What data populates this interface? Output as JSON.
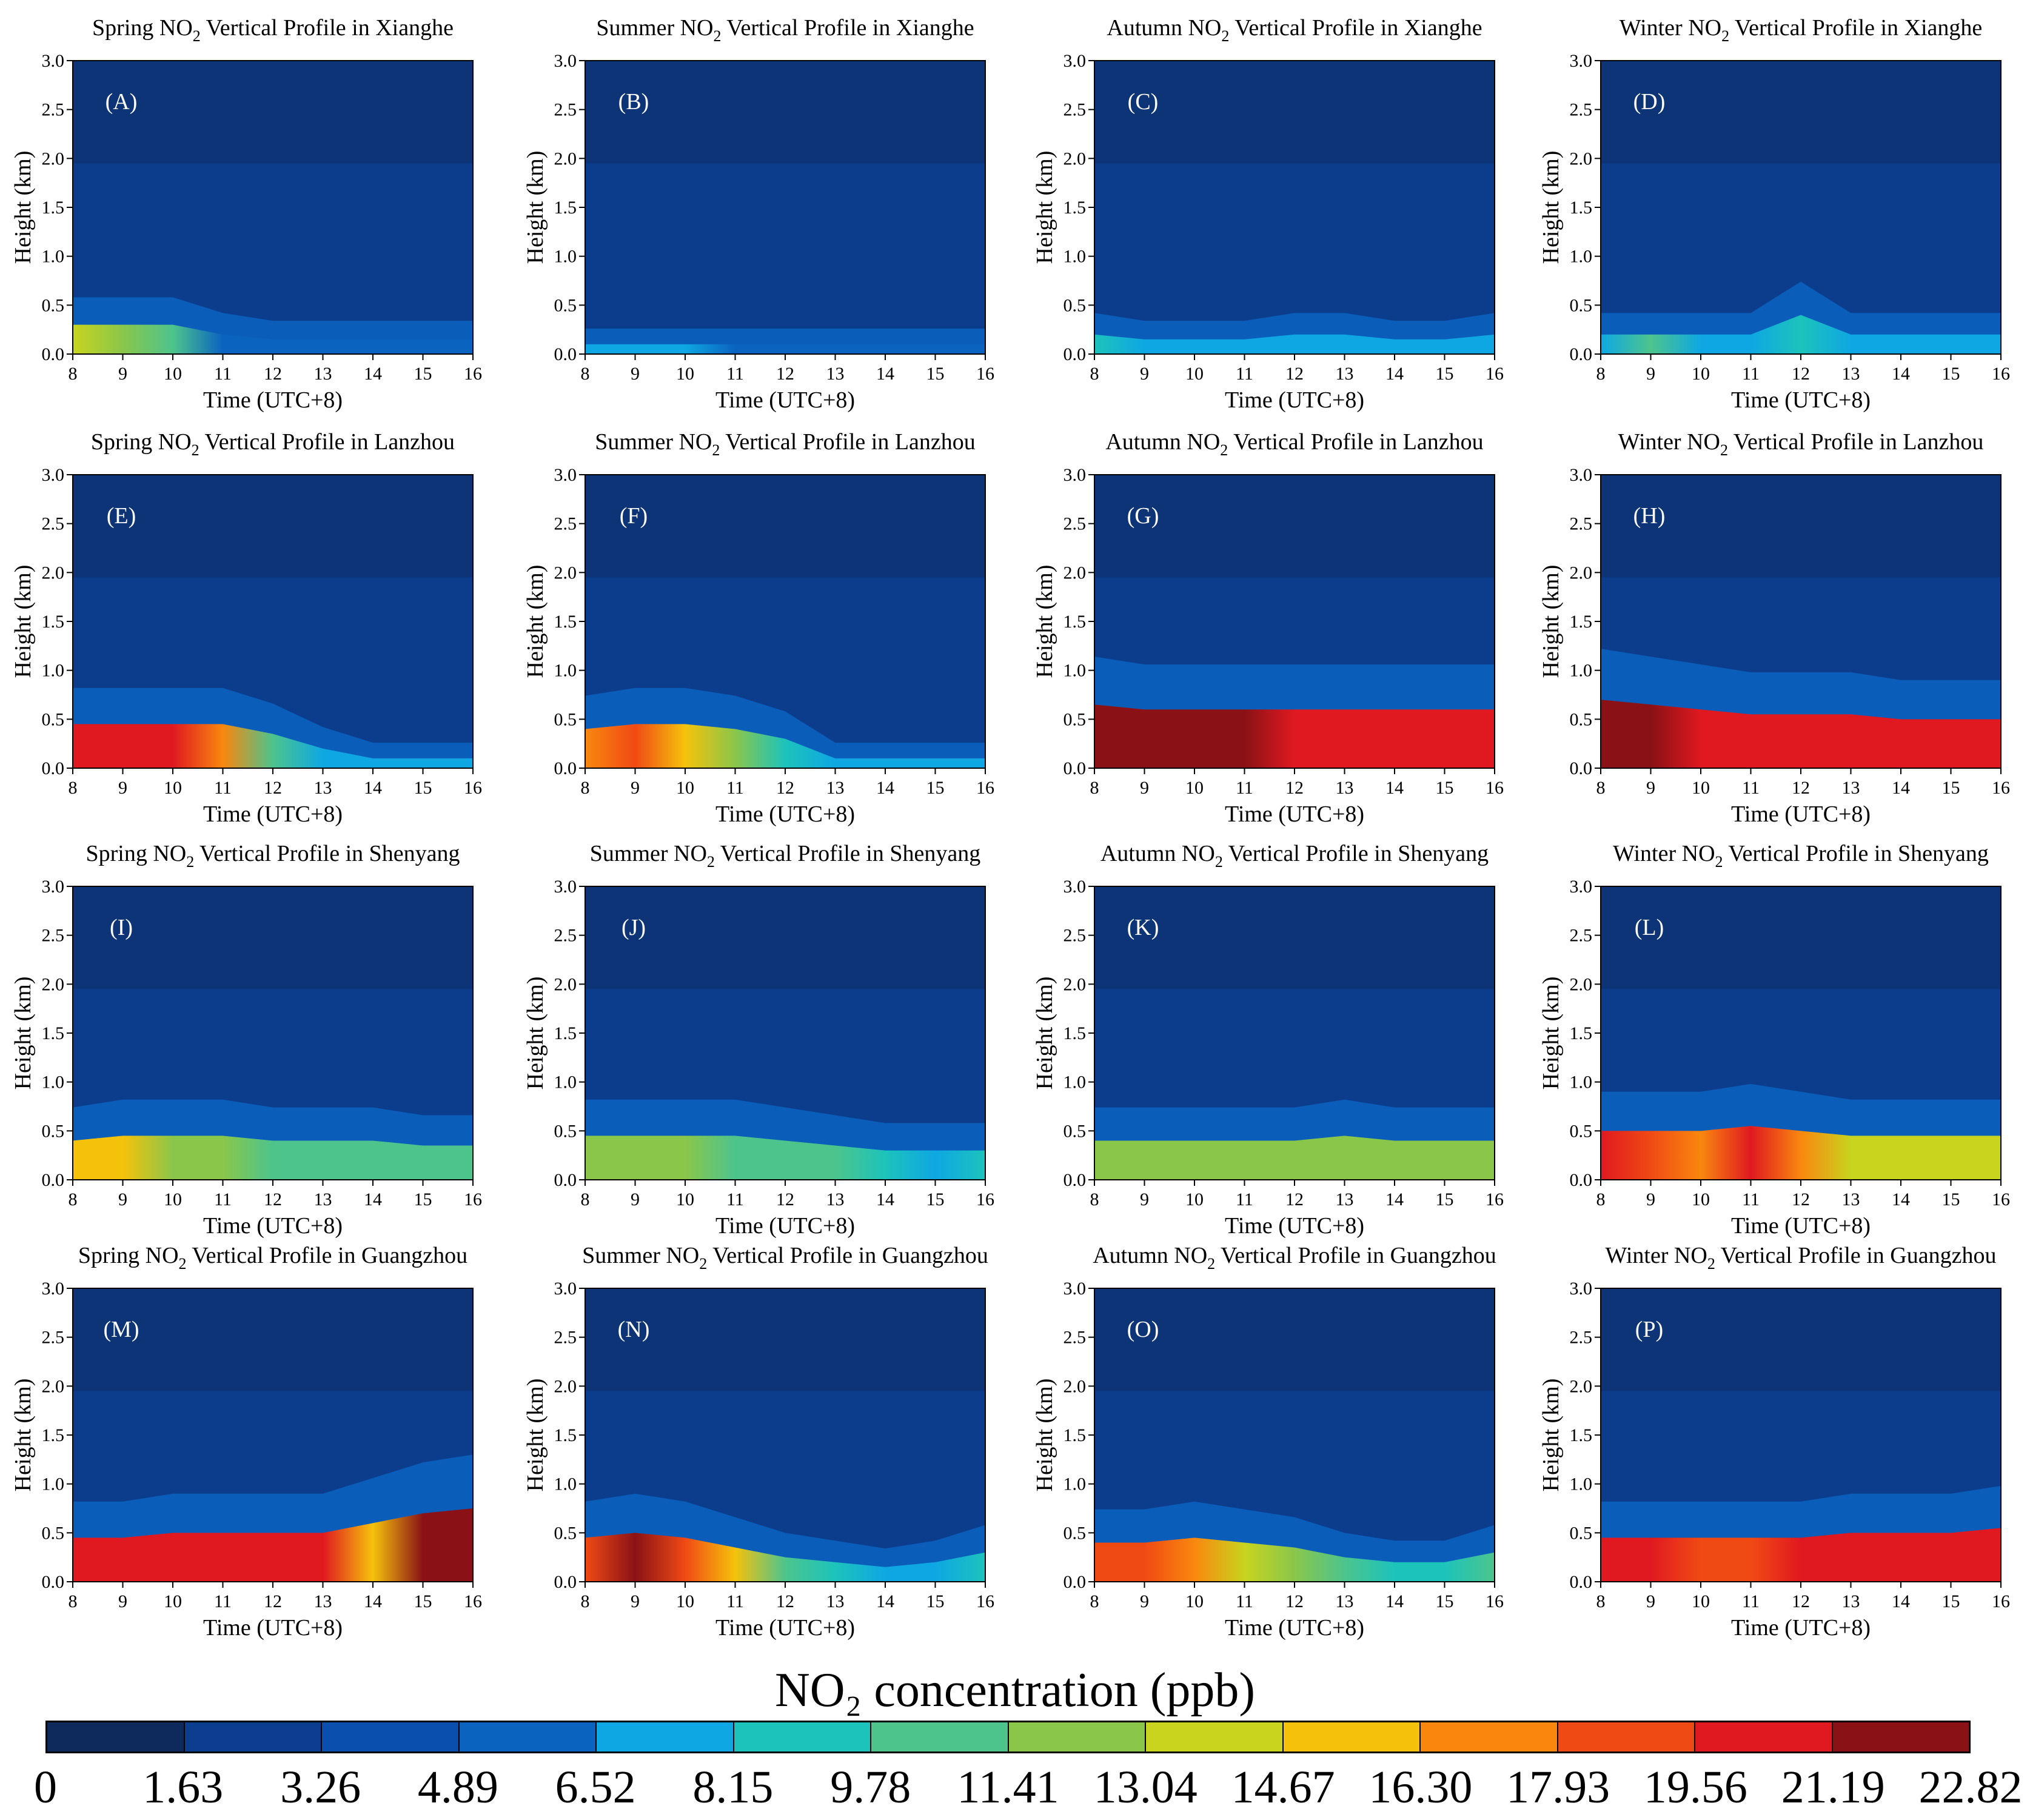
{
  "colorbar": {
    "title": "NO₂ concentration (ppb)",
    "boundaries": [
      "0",
      "1.63",
      "3.26",
      "4.89",
      "6.52",
      "8.15",
      "9.78",
      "11.41",
      "13.04",
      "14.67",
      "16.30",
      "17.93",
      "19.56",
      "21.19",
      "22.82"
    ],
    "colors": [
      "#0e2a5c",
      "#0c3e8f",
      "#0a4fae",
      "#0b63c0",
      "#0ea7e3",
      "#1cc3bb",
      "#4dc48c",
      "#8ac64a",
      "#c8d41e",
      "#f5c20b",
      "#f9870e",
      "#f04a14",
      "#e01920",
      "#8a1216"
    ]
  },
  "chart_data": [
    {
      "type": "heatmap",
      "panel": "(A)",
      "title_prefix": "Spring NO",
      "sub": "2",
      "title_suffix": " Vertical Profile in Xianghe",
      "xlabel": "Time (UTC+8)",
      "ylabel": "Height (km)",
      "x_ticks": [
        "8",
        "9",
        "10",
        "11",
        "12",
        "13",
        "14",
        "15",
        "16"
      ],
      "y_ticks": [
        "0.0",
        "0.5",
        "1.0",
        "1.5",
        "2.0",
        "2.5",
        "3.0"
      ],
      "xlim": [
        8,
        16
      ],
      "ylim": [
        0,
        3
      ],
      "colorbar_range": [
        0,
        22.82
      ],
      "surface_no2_ppb": [
        14,
        13,
        10,
        6,
        6,
        6,
        6,
        6,
        6
      ],
      "mixing_height_km": [
        0.3,
        0.3,
        0.3,
        0.2,
        0.15,
        0.15,
        0.15,
        0.15,
        0.15
      ]
    },
    {
      "type": "heatmap",
      "panel": "(B)",
      "title_prefix": "Summer NO",
      "sub": "2",
      "title_suffix": " Vertical Profile in Xianghe",
      "xlabel": "Time (UTC+8)",
      "ylabel": "Height (km)",
      "x_ticks": [
        "8",
        "9",
        "10",
        "11",
        "12",
        "13",
        "14",
        "15",
        "16"
      ],
      "y_ticks": [
        "0.0",
        "0.5",
        "1.0",
        "1.5",
        "2.0",
        "2.5",
        "3.0"
      ],
      "xlim": [
        8,
        16
      ],
      "ylim": [
        0,
        3
      ],
      "colorbar_range": [
        0,
        22.82
      ],
      "surface_no2_ppb": [
        7,
        7,
        7,
        6.5,
        6.5,
        6.5,
        6.5,
        6.5,
        6.5
      ],
      "mixing_height_km": [
        0.1,
        0.1,
        0.1,
        0.1,
        0.1,
        0.1,
        0.1,
        0.1,
        0.1
      ]
    },
    {
      "type": "heatmap",
      "panel": "(C)",
      "title_prefix": "Autumn NO",
      "sub": "2",
      "title_suffix": " Vertical Profile in Xianghe",
      "xlabel": "Time (UTC+8)",
      "ylabel": "Height (km)",
      "x_ticks": [
        "8",
        "9",
        "10",
        "11",
        "12",
        "13",
        "14",
        "15",
        "16"
      ],
      "y_ticks": [
        "0.0",
        "0.5",
        "1.0",
        "1.5",
        "2.0",
        "2.5",
        "3.0"
      ],
      "xlim": [
        8,
        16
      ],
      "ylim": [
        0,
        3
      ],
      "colorbar_range": [
        0,
        22.82
      ],
      "surface_no2_ppb": [
        9,
        8,
        7,
        7,
        7.5,
        7,
        7,
        7,
        8
      ],
      "mixing_height_km": [
        0.2,
        0.15,
        0.15,
        0.15,
        0.2,
        0.2,
        0.15,
        0.15,
        0.2
      ]
    },
    {
      "type": "heatmap",
      "panel": "(D)",
      "title_prefix": "Winter NO",
      "sub": "2",
      "title_suffix": " Vertical Profile in Xianghe",
      "xlabel": "Time (UTC+8)",
      "ylabel": "Height (km)",
      "x_ticks": [
        "8",
        "9",
        "10",
        "11",
        "12",
        "13",
        "14",
        "15",
        "16"
      ],
      "y_ticks": [
        "0.0",
        "0.5",
        "1.0",
        "1.5",
        "2.0",
        "2.5",
        "3.0"
      ],
      "xlim": [
        8,
        16
      ],
      "ylim": [
        0,
        3
      ],
      "colorbar_range": [
        0,
        22.82
      ],
      "surface_no2_ppb": [
        8,
        10,
        8,
        8,
        9,
        8,
        8,
        8,
        8
      ],
      "mixing_height_km": [
        0.2,
        0.2,
        0.2,
        0.2,
        0.4,
        0.2,
        0.2,
        0.2,
        0.2
      ]
    },
    {
      "type": "heatmap",
      "panel": "(E)",
      "title_prefix": "Spring NO",
      "sub": "2",
      "title_suffix": " Vertical Profile in Lanzhou",
      "xlabel": "Time (UTC+8)",
      "ylabel": "Height (km)",
      "x_ticks": [
        "8",
        "9",
        "10",
        "11",
        "12",
        "13",
        "14",
        "15",
        "16"
      ],
      "y_ticks": [
        "0.0",
        "0.5",
        "1.0",
        "1.5",
        "2.0",
        "2.5",
        "3.0"
      ],
      "xlim": [
        8,
        16
      ],
      "ylim": [
        0,
        3
      ],
      "colorbar_range": [
        0,
        22.82
      ],
      "surface_no2_ppb": [
        21,
        21,
        20,
        17,
        10,
        8,
        7,
        7,
        7
      ],
      "mixing_height_km": [
        0.45,
        0.45,
        0.45,
        0.45,
        0.35,
        0.2,
        0.1,
        0.1,
        0.1
      ]
    },
    {
      "type": "heatmap",
      "panel": "(F)",
      "title_prefix": "Summer NO",
      "sub": "2",
      "title_suffix": " Vertical Profile in Lanzhou",
      "xlabel": "Time (UTC+8)",
      "ylabel": "Height (km)",
      "x_ticks": [
        "8",
        "9",
        "10",
        "11",
        "12",
        "13",
        "14",
        "15",
        "16"
      ],
      "y_ticks": [
        "0.0",
        "0.5",
        "1.0",
        "1.5",
        "2.0",
        "2.5",
        "3.0"
      ],
      "xlim": [
        8,
        16
      ],
      "ylim": [
        0,
        3
      ],
      "colorbar_range": [
        0,
        22.82
      ],
      "surface_no2_ppb": [
        17,
        18,
        16,
        13,
        9,
        7,
        7,
        7,
        7
      ],
      "mixing_height_km": [
        0.4,
        0.45,
        0.45,
        0.4,
        0.3,
        0.1,
        0.1,
        0.1,
        0.1
      ]
    },
    {
      "type": "heatmap",
      "panel": "(G)",
      "title_prefix": "Autumn NO",
      "sub": "2",
      "title_suffix": " Vertical Profile in Lanzhou",
      "xlabel": "Time (UTC+8)",
      "ylabel": "Height (km)",
      "x_ticks": [
        "8",
        "9",
        "10",
        "11",
        "12",
        "13",
        "14",
        "15",
        "16"
      ],
      "y_ticks": [
        "0.0",
        "0.5",
        "1.0",
        "1.5",
        "2.0",
        "2.5",
        "3.0"
      ],
      "xlim": [
        8,
        16
      ],
      "ylim": [
        0,
        3
      ],
      "colorbar_range": [
        0,
        22.82
      ],
      "surface_no2_ppb": [
        22,
        22,
        22,
        22,
        21,
        21,
        21,
        20,
        20
      ],
      "mixing_height_km": [
        0.65,
        0.6,
        0.6,
        0.6,
        0.6,
        0.6,
        0.6,
        0.6,
        0.6
      ]
    },
    {
      "type": "heatmap",
      "panel": "(H)",
      "title_prefix": "Winter NO",
      "sub": "2",
      "title_suffix": " Vertical Profile in Lanzhou",
      "xlabel": "Time (UTC+8)",
      "ylabel": "Height (km)",
      "x_ticks": [
        "8",
        "9",
        "10",
        "11",
        "12",
        "13",
        "14",
        "15",
        "16"
      ],
      "y_ticks": [
        "0.0",
        "0.5",
        "1.0",
        "1.5",
        "2.0",
        "2.5",
        "3.0"
      ],
      "xlim": [
        8,
        16
      ],
      "ylim": [
        0,
        3
      ],
      "colorbar_range": [
        0,
        22.82
      ],
      "surface_no2_ppb": [
        22.5,
        22,
        21,
        21,
        21,
        21,
        21,
        21,
        21
      ],
      "mixing_height_km": [
        0.7,
        0.65,
        0.6,
        0.55,
        0.55,
        0.55,
        0.5,
        0.5,
        0.5
      ]
    },
    {
      "type": "heatmap",
      "panel": "(I)",
      "title_prefix": "Spring NO",
      "sub": "2",
      "title_suffix": " Vertical Profile in Shenyang",
      "xlabel": "Time (UTC+8)",
      "ylabel": "Height (km)",
      "x_ticks": [
        "8",
        "9",
        "10",
        "11",
        "12",
        "13",
        "14",
        "15",
        "16"
      ],
      "y_ticks": [
        "0.0",
        "0.5",
        "1.0",
        "1.5",
        "2.0",
        "2.5",
        "3.0"
      ],
      "xlim": [
        8,
        16
      ],
      "ylim": [
        0,
        3
      ],
      "colorbar_range": [
        0,
        22.82
      ],
      "surface_no2_ppb": [
        15,
        15,
        13,
        12,
        11,
        10,
        10,
        10,
        10
      ],
      "mixing_height_km": [
        0.4,
        0.45,
        0.45,
        0.45,
        0.4,
        0.4,
        0.4,
        0.35,
        0.35
      ]
    },
    {
      "type": "heatmap",
      "panel": "(J)",
      "title_prefix": "Summer NO",
      "sub": "2",
      "title_suffix": " Vertical Profile in Shenyang",
      "xlabel": "Time (UTC+8)",
      "ylabel": "Height (km)",
      "x_ticks": [
        "8",
        "9",
        "10",
        "11",
        "12",
        "13",
        "14",
        "15",
        "16"
      ],
      "y_ticks": [
        "0.0",
        "0.5",
        "1.0",
        "1.5",
        "2.0",
        "2.5",
        "3.0"
      ],
      "xlim": [
        8,
        16
      ],
      "ylim": [
        0,
        3
      ],
      "colorbar_range": [
        0,
        22.82
      ],
      "surface_no2_ppb": [
        12,
        13,
        12,
        11,
        10,
        10,
        9,
        8,
        9
      ],
      "mixing_height_km": [
        0.45,
        0.45,
        0.45,
        0.45,
        0.4,
        0.35,
        0.3,
        0.3,
        0.3
      ]
    },
    {
      "type": "heatmap",
      "panel": "(K)",
      "title_prefix": "Autumn NO",
      "sub": "2",
      "title_suffix": " Vertical Profile in Shenyang",
      "xlabel": "Time (UTC+8)",
      "ylabel": "Height (km)",
      "x_ticks": [
        "8",
        "9",
        "10",
        "11",
        "12",
        "13",
        "14",
        "15",
        "16"
      ],
      "y_ticks": [
        "0.0",
        "0.5",
        "1.0",
        "1.5",
        "2.0",
        "2.5",
        "3.0"
      ],
      "xlim": [
        8,
        16
      ],
      "ylim": [
        0,
        3
      ],
      "colorbar_range": [
        0,
        22.82
      ],
      "surface_no2_ppb": [
        12,
        12,
        12,
        12,
        12,
        12,
        12,
        12,
        12
      ],
      "mixing_height_km": [
        0.4,
        0.4,
        0.4,
        0.4,
        0.4,
        0.45,
        0.4,
        0.4,
        0.4
      ]
    },
    {
      "type": "heatmap",
      "panel": "(L)",
      "title_prefix": "Winter NO",
      "sub": "2",
      "title_suffix": " Vertical Profile in Shenyang",
      "xlabel": "Time (UTC+8)",
      "ylabel": "Height (km)",
      "x_ticks": [
        "8",
        "9",
        "10",
        "11",
        "12",
        "13",
        "14",
        "15",
        "16"
      ],
      "y_ticks": [
        "0.0",
        "0.5",
        "1.0",
        "1.5",
        "2.0",
        "2.5",
        "3.0"
      ],
      "xlim": [
        8,
        16
      ],
      "ylim": [
        0,
        3
      ],
      "colorbar_range": [
        0,
        22.82
      ],
      "surface_no2_ppb": [
        20,
        19,
        17,
        21,
        17,
        14,
        14,
        14,
        14
      ],
      "mixing_height_km": [
        0.5,
        0.5,
        0.5,
        0.55,
        0.5,
        0.45,
        0.45,
        0.45,
        0.45
      ]
    },
    {
      "type": "heatmap",
      "panel": "(M)",
      "title_prefix": "Spring NO",
      "sub": "2",
      "title_suffix": " Vertical Profile in Guangzhou",
      "xlabel": "Time (UTC+8)",
      "ylabel": "Height (km)",
      "x_ticks": [
        "8",
        "9",
        "10",
        "11",
        "12",
        "13",
        "14",
        "15",
        "16"
      ],
      "y_ticks": [
        "0.0",
        "0.5",
        "1.0",
        "1.5",
        "2.0",
        "2.5",
        "3.0"
      ],
      "xlim": [
        8,
        16
      ],
      "ylim": [
        0,
        3
      ],
      "colorbar_range": [
        0,
        22.82
      ],
      "surface_no2_ppb": [
        21,
        21,
        20,
        21,
        20,
        21,
        16,
        22,
        22
      ],
      "mixing_height_km": [
        0.45,
        0.45,
        0.5,
        0.5,
        0.5,
        0.5,
        0.6,
        0.7,
        0.75
      ]
    },
    {
      "type": "heatmap",
      "panel": "(N)",
      "title_prefix": "Summer NO",
      "sub": "2",
      "title_suffix": " Vertical Profile in Guangzhou",
      "xlabel": "Time (UTC+8)",
      "ylabel": "Height (km)",
      "x_ticks": [
        "8",
        "9",
        "10",
        "11",
        "12",
        "13",
        "14",
        "15",
        "16"
      ],
      "y_ticks": [
        "0.0",
        "0.5",
        "1.0",
        "1.5",
        "2.0",
        "2.5",
        "3.0"
      ],
      "xlim": [
        8,
        16
      ],
      "ylim": [
        0,
        3
      ],
      "colorbar_range": [
        0,
        22.82
      ],
      "surface_no2_ppb": [
        19,
        22.5,
        18,
        15,
        11,
        9,
        8,
        8,
        9
      ],
      "mixing_height_km": [
        0.45,
        0.5,
        0.45,
        0.35,
        0.25,
        0.2,
        0.15,
        0.2,
        0.3
      ]
    },
    {
      "type": "heatmap",
      "panel": "(O)",
      "title_prefix": "Autumn NO",
      "sub": "2",
      "title_suffix": " Vertical Profile in Guangzhou",
      "xlabel": "Time (UTC+8)",
      "ylabel": "Height (km)",
      "x_ticks": [
        "8",
        "9",
        "10",
        "11",
        "12",
        "13",
        "14",
        "15",
        "16"
      ],
      "y_ticks": [
        "0.0",
        "0.5",
        "1.0",
        "1.5",
        "2.0",
        "2.5",
        "3.0"
      ],
      "xlim": [
        8,
        16
      ],
      "ylim": [
        0,
        3
      ],
      "colorbar_range": [
        0,
        22.82
      ],
      "surface_no2_ppb": [
        19,
        19,
        17,
        14,
        12,
        10,
        9,
        9,
        10
      ],
      "mixing_height_km": [
        0.4,
        0.4,
        0.45,
        0.4,
        0.35,
        0.25,
        0.2,
        0.2,
        0.3
      ]
    },
    {
      "type": "heatmap",
      "panel": "(P)",
      "title_prefix": "Winter NO",
      "sub": "2",
      "title_suffix": " Vertical Profile in Guangzhou",
      "xlabel": "Time (UTC+8)",
      "ylabel": "Height (km)",
      "x_ticks": [
        "8",
        "9",
        "10",
        "11",
        "12",
        "13",
        "14",
        "15",
        "16"
      ],
      "y_ticks": [
        "0.0",
        "0.5",
        "1.0",
        "1.5",
        "2.0",
        "2.5",
        "3.0"
      ],
      "xlim": [
        8,
        16
      ],
      "ylim": [
        0,
        3
      ],
      "colorbar_range": [
        0,
        22.82
      ],
      "surface_no2_ppb": [
        20,
        20,
        19,
        19,
        20,
        20,
        20,
        20,
        20
      ],
      "mixing_height_km": [
        0.45,
        0.45,
        0.45,
        0.45,
        0.45,
        0.5,
        0.5,
        0.5,
        0.55
      ]
    }
  ]
}
